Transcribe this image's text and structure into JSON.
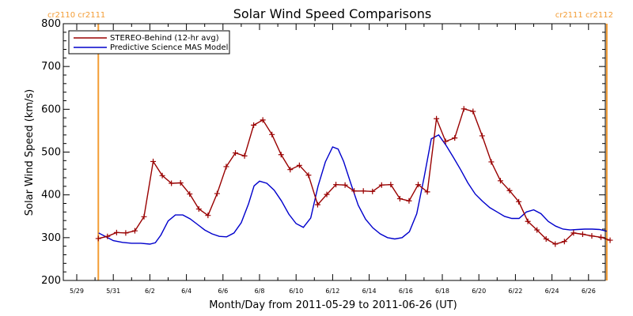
{
  "colors": {
    "stereo": "#990000",
    "model": "#0000cc",
    "marker_line": "#f39c34",
    "axis": "#000000"
  },
  "labels": {
    "cr_left": "cr2110 cr2111",
    "cr_right": "cr2111 cr2112"
  },
  "chart_data": {
    "type": "line",
    "title": "Solar Wind Speed Comparisons",
    "xlabel": "Month/Day from 2011-05-29 to 2011-06-26 (UT)",
    "ylabel": "Solar Wind Speed (km/s)",
    "x_unit": "days after 2011-05-29 00:00 UT",
    "xlim": [
      0,
      29.5
    ],
    "ylim": [
      200,
      800
    ],
    "xticks": [
      {
        "x": 0,
        "label": "5/29"
      },
      {
        "x": 2,
        "label": "5/31"
      },
      {
        "x": 4,
        "label": "6/2"
      },
      {
        "x": 6,
        "label": "6/4"
      },
      {
        "x": 8,
        "label": "6/6"
      },
      {
        "x": 10,
        "label": "6/8"
      },
      {
        "x": 12,
        "label": "6/10"
      },
      {
        "x": 14,
        "label": "6/12"
      },
      {
        "x": 16,
        "label": "6/14"
      },
      {
        "x": 18,
        "label": "6/16"
      },
      {
        "x": 20,
        "label": "6/18"
      },
      {
        "x": 22,
        "label": "6/20"
      },
      {
        "x": 24,
        "label": "6/22"
      },
      {
        "x": 26,
        "label": "6/24"
      },
      {
        "x": 28,
        "label": "6/26"
      }
    ],
    "yticks": [
      200,
      300,
      400,
      500,
      600,
      700,
      800
    ],
    "legend": {
      "placement": "top-left"
    },
    "carrington_markers": [
      {
        "x": 1.18,
        "label": "cr2110 cr2111",
        "side": "left"
      },
      {
        "x": 29.0,
        "label": "cr2111 cr2112",
        "side": "right"
      }
    ],
    "series": [
      {
        "name": "STEREO-Behind (12-hr avg)",
        "color": "#990000",
        "marker": "+",
        "x": [
          1.18,
          1.68,
          2.18,
          2.68,
          3.18,
          3.68,
          4.18,
          4.68,
          5.18,
          5.68,
          6.18,
          6.68,
          7.18,
          7.68,
          8.18,
          8.68,
          9.18,
          9.68,
          10.18,
          10.68,
          11.18,
          11.68,
          12.18,
          12.68,
          13.18,
          13.68,
          14.18,
          14.68,
          15.18,
          15.68,
          16.18,
          16.68,
          17.18,
          17.68,
          18.18,
          18.68,
          19.18,
          19.68,
          20.18,
          20.68,
          21.18,
          21.68,
          22.18,
          22.68,
          23.18,
          23.68,
          24.18,
          24.68,
          25.18,
          25.68,
          26.18,
          26.68,
          27.18,
          27.68,
          28.18,
          28.68,
          29.18
        ],
        "y": [
          298,
          303,
          312,
          311,
          316,
          349,
          478,
          445,
          427,
          428,
          402,
          367,
          352,
          403,
          466,
          498,
          491,
          563,
          575,
          541,
          494,
          459,
          469,
          446,
          377,
          401,
          424,
          423,
          409,
          409,
          408,
          423,
          424,
          391,
          386,
          424,
          407,
          578,
          525,
          533,
          601,
          595,
          538,
          477,
          433,
          410,
          384,
          338,
          318,
          297,
          285,
          291,
          311,
          308,
          304,
          301,
          294
        ]
      },
      {
        "name": "Predictive Science MAS Model",
        "color": "#0000cc",
        "x": [
          1.2,
          1.6,
          2.0,
          2.5,
          3.0,
          3.5,
          4.0,
          4.3,
          4.6,
          5.0,
          5.4,
          5.8,
          6.2,
          6.6,
          7.0,
          7.4,
          7.8,
          8.2,
          8.6,
          9.0,
          9.4,
          9.7,
          10.0,
          10.4,
          10.8,
          11.2,
          11.6,
          12.0,
          12.4,
          12.8,
          13.2,
          13.6,
          14.0,
          14.3,
          14.6,
          15.0,
          15.4,
          15.8,
          16.2,
          16.6,
          17.0,
          17.4,
          17.8,
          18.2,
          18.6,
          19.0,
          19.4,
          19.8,
          20.2,
          20.6,
          21.0,
          21.4,
          21.8,
          22.2,
          22.6,
          23.0,
          23.4,
          23.8,
          24.2,
          24.6,
          25.0,
          25.4,
          25.8,
          26.2,
          26.6,
          27.0,
          27.4,
          27.8,
          28.2,
          28.6,
          29.0
        ],
        "y": [
          311,
          302,
          293,
          289,
          287,
          287,
          285,
          288,
          306,
          339,
          353,
          353,
          344,
          331,
          318,
          309,
          303,
          302,
          311,
          335,
          379,
          421,
          432,
          427,
          411,
          386,
          355,
          333,
          324,
          346,
          420,
          477,
          512,
          507,
          478,
          426,
          376,
          343,
          323,
          309,
          300,
          297,
          300,
          314,
          356,
          440,
          531,
          540,
          516,
          488,
          459,
          428,
          402,
          385,
          370,
          360,
          350,
          345,
          345,
          360,
          365,
          356,
          338,
          327,
          320,
          318,
          319,
          320,
          320,
          319,
          315
        ]
      }
    ]
  }
}
